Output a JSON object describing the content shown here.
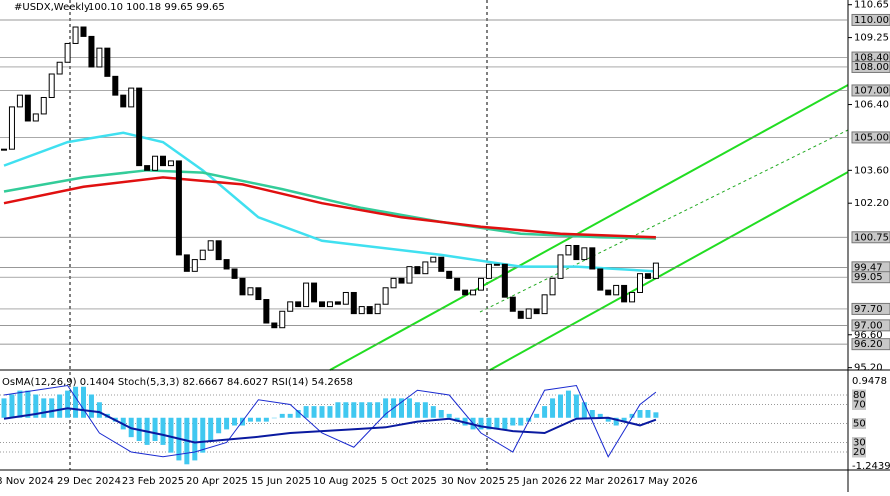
{
  "chart_data": [
    {
      "type": "candlestick",
      "symbol": "#USDX,Weekly",
      "ohlc": "100.10 100.18 99.65 99.65",
      "close": [
        104.5,
        106.3,
        106.8,
        105.7,
        106.0,
        106.7,
        107.7,
        108.2,
        109.0,
        109.7,
        109.3,
        108.0,
        108.8,
        107.6,
        106.8,
        106.3,
        107.1,
        103.8,
        103.6,
        104.2,
        103.8,
        104.0,
        100.0,
        99.3,
        99.8,
        100.2,
        100.6,
        99.8,
        99.4,
        99.0,
        98.3,
        98.6,
        98.1,
        97.1,
        96.9,
        97.6,
        98.0,
        97.8,
        98.8,
        98.0,
        97.8,
        98.0,
        97.9,
        98.4,
        97.5,
        97.8,
        97.5,
        97.9,
        98.6,
        99.0,
        98.8,
        99.5,
        99.2,
        99.7,
        99.9,
        99.3,
        99.0,
        98.5,
        98.3,
        98.5,
        99.0,
        99.6,
        99.6,
        98.2,
        97.6,
        97.3,
        97.7,
        97.5,
        98.3,
        99.0,
        100.0,
        100.4,
        99.8,
        100.3,
        99.4,
        98.5,
        98.3,
        98.7,
        98.0,
        98.4,
        99.2,
        99.0,
        99.65
      ],
      "series": [
        {
          "color": "#40e0f0",
          "x": [
            0,
            8,
            15,
            20,
            25,
            32,
            40,
            45,
            55,
            65,
            72,
            82
          ],
          "values": [
            103.8,
            104.8,
            105.2,
            104.8,
            103.6,
            101.6,
            100.6,
            100.4,
            100.0,
            99.5,
            99.5,
            99.3
          ]
        },
        {
          "color": "#33cc99",
          "x": [
            0,
            10,
            18,
            25,
            35,
            45,
            55,
            65,
            75,
            82
          ],
          "values": [
            102.7,
            103.3,
            103.6,
            103.5,
            102.8,
            102.0,
            101.4,
            100.9,
            100.75,
            100.7
          ]
        },
        {
          "color": "#e01010",
          "x": [
            0,
            10,
            20,
            30,
            40,
            50,
            60,
            70,
            82
          ],
          "values": [
            102.2,
            102.9,
            103.3,
            103.0,
            102.2,
            101.6,
            101.2,
            100.9,
            100.75
          ]
        }
      ],
      "ylim": [
        95.1,
        110.85
      ],
      "yticks": [
        {
          "value": 110.65,
          "label": "110.65"
        },
        {
          "value": 109.25,
          "label": "109.25"
        },
        {
          "value": 106.4,
          "label": "106.40"
        },
        {
          "value": 103.6,
          "label": "103.60"
        },
        {
          "value": 102.2,
          "label": "102.20"
        },
        {
          "value": 96.6,
          "label": "96.60"
        },
        {
          "value": 95.2,
          "label": "95.20"
        }
      ],
      "levels": [
        {
          "value": 110,
          "label": "110.00"
        },
        {
          "value": 108.4,
          "label": "108.40"
        },
        {
          "value": 108,
          "label": "108.00"
        },
        {
          "value": 107,
          "label": "107.00"
        },
        {
          "value": 105,
          "label": "105.00"
        },
        {
          "value": 100.75,
          "label": "100.75"
        },
        {
          "value": 99.47,
          "label": "99.47"
        },
        {
          "value": 99.05,
          "label": "99.05"
        },
        {
          "value": 97.7,
          "label": "97.70"
        },
        {
          "value": 97,
          "label": "97.00"
        },
        {
          "value": 96.2,
          "label": "96.20"
        }
      ],
      "xlabels": [
        "8 Nov 2024",
        "29 Dec 2024",
        "23 Feb 2025",
        "20 Apr 2025",
        "15 Jun 2025",
        "10 Aug 2025",
        "5 Oct 2025",
        "30 Nov 2025",
        "25 Jan 2026",
        "22 Mar 2026",
        "17 May 2026"
      ]
    },
    {
      "type": "oscillator",
      "title": "OsMA(12,26,9) 0.1404 Stoch(5,3,3) 82.6667 84.6027 RSI(14) 54.2658",
      "histogram": {
        "color": "#40c8f0",
        "values": [
          0.5,
          0.6,
          0.7,
          0.7,
          0.6,
          0.5,
          0.5,
          0.6,
          0.7,
          0.8,
          0.8,
          0.6,
          0.4,
          0.1,
          -0.1,
          -0.3,
          -0.5,
          -0.6,
          -0.7,
          -0.6,
          -0.7,
          -0.9,
          -1.1,
          -1.2,
          -1.1,
          -0.9,
          -0.6,
          -0.4,
          -0.3,
          -0.2,
          -0.2,
          -0.1,
          -0.1,
          -0.1,
          0.0,
          0.1,
          0.1,
          0.2,
          0.3,
          0.3,
          0.3,
          0.3,
          0.4,
          0.4,
          0.4,
          0.4,
          0.4,
          0.4,
          0.5,
          0.5,
          0.5,
          0.5,
          0.4,
          0.4,
          0.3,
          0.2,
          0.1,
          -0.1,
          -0.2,
          -0.3,
          -0.3,
          -0.3,
          -0.3,
          -0.3,
          -0.2,
          -0.2,
          -0.1,
          0.1,
          0.3,
          0.5,
          0.6,
          0.7,
          0.6,
          0.4,
          0.2,
          0.1,
          -0.1,
          -0.2,
          -0.1,
          0.1,
          0.2,
          0.2,
          0.14
        ]
      },
      "ylim": [
        -1.2439,
        0.9478
      ],
      "series": [
        {
          "color": "#1a2ad0",
          "x": [
            0,
            4,
            8,
            12,
            16,
            20,
            24,
            28,
            32,
            36,
            40,
            44,
            48,
            52,
            56,
            60,
            64,
            68,
            72,
            76,
            80,
            82
          ],
          "values": [
            80,
            85,
            90,
            40,
            20,
            15,
            20,
            30,
            75,
            70,
            40,
            25,
            60,
            85,
            80,
            40,
            20,
            85,
            90,
            15,
            70,
            83
          ]
        },
        {
          "color": "#0a1aa0",
          "x": [
            0,
            4,
            8,
            12,
            16,
            20,
            24,
            28,
            32,
            36,
            40,
            44,
            48,
            52,
            56,
            60,
            64,
            68,
            72,
            76,
            80,
            82
          ],
          "values": [
            55,
            60,
            66,
            62,
            45,
            38,
            30,
            33,
            36,
            40,
            42,
            44,
            46,
            52,
            55,
            47,
            42,
            40,
            55,
            56,
            48,
            54
          ]
        }
      ],
      "y2lim": [
        0,
        100
      ],
      "y2ticks": [
        80,
        70,
        50,
        30,
        20
      ]
    }
  ]
}
